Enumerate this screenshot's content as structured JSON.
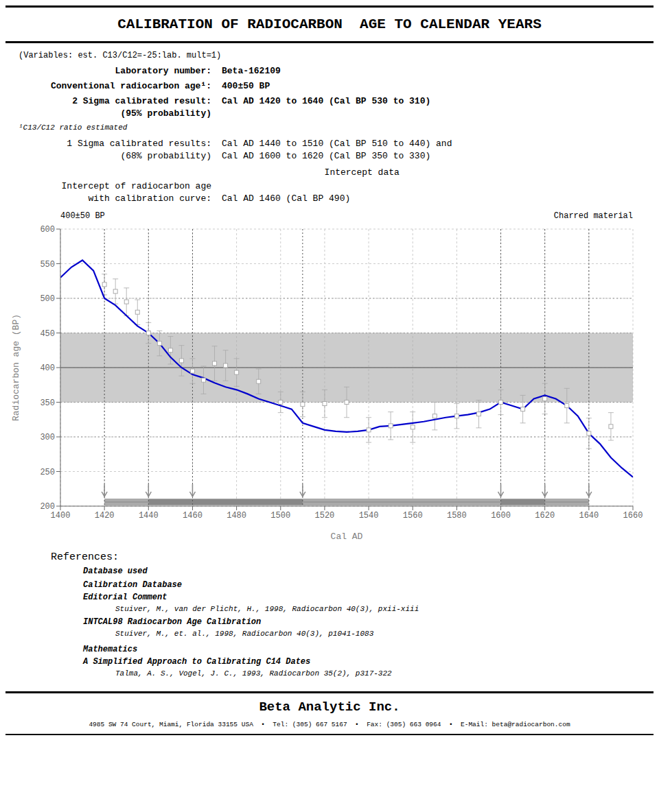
{
  "chart_data": {
    "type": "line",
    "title": "CALIBRATION OF RADIOCARBON  AGE TO CALENDAR YEARS",
    "subtitle": "(Variables: est. C13/C12=-25:lab. mult=1)",
    "xlabel": "Cal AD",
    "ylabel": "Radiocarbon age (BP)",
    "annotations": {
      "lab_number_label": "Laboratory number:",
      "lab_number_value": "Beta-162109",
      "conv_age_label": "Conventional radiocarbon age¹:",
      "conv_age_value": "400±50 BP",
      "sigma2_label": "2 Sigma calibrated result:",
      "sigma2_sub": "(95% probability)",
      "sigma2_value": "Cal AD 1420 to 1640 (Cal BP 530 to 310)",
      "footnote": "¹C13/C12 ratio estimated",
      "intercept_header": "Intercept data",
      "intercept_label1": "Intercept of radiocarbon age",
      "intercept_label2": "with calibration curve:",
      "intercept_value": "Cal AD 1460 (Cal BP 490)",
      "sigma1_label": "1 Sigma calibrated results:",
      "sigma1_sub": "(68% probability)",
      "sigma1_value1": "Cal AD 1440 to 1510 (Cal BP 510 to 440) and",
      "sigma1_value2": "Cal AD 1600 to 1620 (Cal BP 350 to 330)",
      "age_label": "400±50 BP",
      "material_label": "Charred material",
      "ref_header": "References:",
      "ref_db": "Database used",
      "ref_cal_db": "Calibration Database",
      "ref_editorial": "Editorial Comment",
      "ref_stuiver1": "Stuiver, M., van der Plicht, H., 1998, Radiocarbon 40(3), pxii-xiii",
      "ref_intcal": "INTCAL98 Radiocarbon Age Calibration",
      "ref_stuiver2": "Stuiver, M., et. al., 1998, Radiocarbon 40(3), p1041-1083",
      "ref_math": "Mathematics",
      "ref_simplified": "A Simplified Approach to Calibrating C14 Dates",
      "ref_talma": "Talma, A. S., Vogel, J. C., 1993, Radiocarbon 35(2), p317-322",
      "footer_company": "Beta Analytic Inc.",
      "footer_address": "4985 SW 74 Court, Miami, Florida 33155 USA  •  Tel: (305) 667 5167  •  Fax: (305) 663 0964  •  E-Mail: beta@radiocarbon.com"
    },
    "x": [
      1400,
      1405,
      1410,
      1415,
      1420,
      1425,
      1430,
      1435,
      1440,
      1445,
      1450,
      1455,
      1460,
      1465,
      1470,
      1475,
      1480,
      1485,
      1490,
      1495,
      1500,
      1505,
      1510,
      1515,
      1520,
      1525,
      1530,
      1535,
      1540,
      1545,
      1550,
      1555,
      1560,
      1565,
      1570,
      1575,
      1580,
      1585,
      1590,
      1595,
      1600,
      1605,
      1610,
      1615,
      1620,
      1625,
      1630,
      1635,
      1640,
      1645,
      1650,
      1655,
      1660
    ],
    "values": [
      530,
      545,
      555,
      540,
      500,
      490,
      475,
      460,
      450,
      435,
      415,
      400,
      390,
      385,
      378,
      372,
      368,
      362,
      355,
      350,
      345,
      340,
      320,
      315,
      310,
      308,
      307,
      308,
      310,
      315,
      316,
      318,
      320,
      322,
      325,
      328,
      330,
      332,
      335,
      340,
      350,
      345,
      340,
      355,
      360,
      355,
      345,
      330,
      305,
      290,
      270,
      255,
      242
    ],
    "color": "#0000cc",
    "points": {
      "x": [
        1420,
        1425,
        1430,
        1435,
        1440,
        1445,
        1450,
        1455,
        1460,
        1465,
        1470,
        1475,
        1480,
        1490,
        1500,
        1510,
        1520,
        1530,
        1540,
        1550,
        1560,
        1570,
        1580,
        1590,
        1600,
        1610,
        1620,
        1630,
        1640,
        1650
      ],
      "values": [
        520,
        510,
        495,
        480,
        450,
        435,
        425,
        410,
        395,
        382,
        406,
        403,
        393,
        380,
        350,
        347,
        348,
        350,
        310,
        316,
        314,
        330,
        330,
        333,
        350,
        340,
        355,
        345,
        305,
        315
      ],
      "errors": [
        15,
        18,
        20,
        18,
        15,
        18,
        20,
        22,
        18,
        20,
        25,
        22,
        20,
        18,
        15,
        18,
        20,
        22,
        18,
        20,
        22,
        20,
        18,
        20,
        18,
        20,
        22,
        25,
        22,
        20
      ],
      "color": "#aaaaaa",
      "marker": "square"
    },
    "xlim": [
      1400,
      1660
    ],
    "ylim": [
      200,
      600
    ],
    "xticks": [
      1400,
      1420,
      1440,
      1460,
      1480,
      1500,
      1520,
      1540,
      1560,
      1580,
      1600,
      1620,
      1640,
      1660
    ],
    "yticks": [
      200,
      250,
      300,
      350,
      400,
      450,
      500,
      550,
      600
    ],
    "grid": true,
    "radiocarbon_age": 400,
    "radiocarbon_error": 50,
    "intercept_cal_ad": 1460,
    "sigma1_ranges": [
      [
        1440,
        1510
      ],
      [
        1600,
        1620
      ]
    ],
    "sigma2_range": [
      1420,
      1640
    ],
    "dotted_lines_y": [
      500,
      450,
      350,
      300
    ],
    "vert_line_color": "#555555",
    "arrow_color": "#888888"
  }
}
